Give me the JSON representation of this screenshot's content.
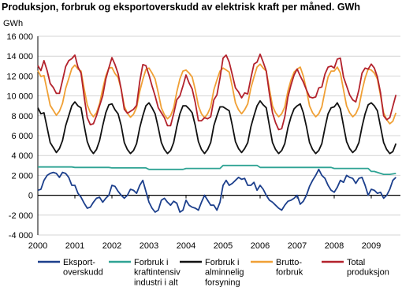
{
  "chart_data": {
    "type": "line",
    "title": "Produksjon, forbruk og eksportoverskudd av elektrisk kraft per måned. GWh",
    "y_label": "GWh",
    "categories": [
      "2000",
      null,
      null,
      null,
      null,
      null,
      null,
      null,
      null,
      null,
      null,
      null,
      "2001",
      null,
      null,
      null,
      null,
      null,
      null,
      null,
      null,
      null,
      null,
      null,
      "2002",
      null,
      null,
      null,
      null,
      null,
      null,
      null,
      null,
      null,
      null,
      null,
      "2003",
      null,
      null,
      null,
      null,
      null,
      null,
      null,
      null,
      null,
      null,
      null,
      "2004",
      null,
      null,
      null,
      null,
      null,
      null,
      null,
      null,
      null,
      null,
      null,
      "2005",
      null,
      null,
      null,
      null,
      null,
      null,
      null,
      null,
      null,
      null,
      null,
      "2006",
      null,
      null,
      null,
      null,
      null,
      null,
      null,
      null,
      null,
      null,
      null,
      "2007",
      null,
      null,
      null,
      null,
      null,
      null,
      null,
      null,
      null,
      null,
      null,
      "2008",
      null,
      null,
      null,
      null,
      null,
      null,
      null,
      null,
      null,
      null,
      null,
      "2009",
      null,
      null,
      null,
      null,
      null,
      null,
      null,
      null
    ],
    "ylim": [
      -4000,
      16000
    ],
    "yticks": [
      {
        "value": -4000,
        "label": "-4 000"
      },
      {
        "value": -2000,
        "label": "-2 000"
      },
      0,
      {
        "value": 2000,
        "label": "2 000"
      },
      {
        "value": 4000,
        "label": "4 000"
      },
      {
        "value": 6000,
        "label": "6 000"
      },
      {
        "value": 8000,
        "label": "8 000"
      },
      {
        "value": 10000,
        "label": "10 000"
      },
      {
        "value": 12000,
        "label": "12 000"
      },
      {
        "value": 14000,
        "label": "14 000"
      },
      {
        "value": 16000,
        "label": "16 000"
      }
    ],
    "grid": true,
    "series": [
      {
        "name": "Eksport-\noverskudd",
        "color": "#1c3f8c",
        "values": [
          500,
          600,
          1500,
          2000,
          2200,
          2300,
          2200,
          1800,
          2300,
          2200,
          1800,
          1000,
          1000,
          200,
          -200,
          -800,
          -1300,
          -1200,
          -700,
          -300,
          -200,
          -700,
          -300,
          0,
          1000,
          900,
          400,
          0,
          -300,
          0,
          600,
          500,
          200,
          1000,
          1500,
          400,
          -700,
          -1300,
          -1700,
          -1500,
          -500,
          -300,
          -700,
          -1000,
          -600,
          -800,
          -1700,
          -1500,
          -500,
          -1000,
          -1200,
          -1300,
          -1500,
          -700,
          0,
          -500,
          -1000,
          -1000,
          -1500,
          -700,
          1000,
          1500,
          1000,
          1200,
          1500,
          1800,
          1600,
          1700,
          1000,
          1000,
          1300,
          500,
          1000,
          600,
          0,
          -500,
          -700,
          -1000,
          -1300,
          -1500,
          -1000,
          -600,
          -500,
          -300,
          0,
          -900,
          -600,
          0,
          900,
          1500,
          2000,
          2600,
          2000,
          1700,
          1000,
          500,
          300,
          800,
          1500,
          1300,
          2000,
          1800,
          1700,
          1200,
          1700,
          1800,
          1000,
          0,
          600,
          500,
          200,
          300,
          -300,
          0,
          600,
          1500,
          1800
        ]
      },
      {
        "name": "Forbruk i\nkraftintensiv\nindustri i alt",
        "color": "#2fa394",
        "values": [
          2850,
          2850,
          2850,
          2850,
          2850,
          2850,
          2850,
          2850,
          2850,
          2850,
          2850,
          2850,
          2800,
          2800,
          2800,
          2800,
          2800,
          2800,
          2800,
          2800,
          2800,
          2800,
          2800,
          2800,
          2750,
          2750,
          2750,
          2750,
          2750,
          2750,
          2750,
          2750,
          2750,
          2750,
          2750,
          2750,
          2600,
          2600,
          2600,
          2600,
          2600,
          2600,
          2600,
          2600,
          2600,
          2600,
          2600,
          2600,
          2700,
          2700,
          2700,
          2700,
          2700,
          2700,
          2700,
          2700,
          2700,
          2700,
          2700,
          2700,
          3000,
          3000,
          3000,
          3000,
          3000,
          3000,
          3000,
          3000,
          3000,
          3000,
          3000,
          3000,
          2800,
          2800,
          2800,
          2800,
          2800,
          2800,
          2800,
          2800,
          2800,
          2800,
          2800,
          2800,
          2800,
          2800,
          2800,
          2800,
          2800,
          2800,
          2800,
          2800,
          2800,
          2800,
          2800,
          2800,
          2700,
          2700,
          2700,
          2700,
          2700,
          2700,
          2700,
          2700,
          2700,
          2700,
          2700,
          2700,
          2400,
          2400,
          2300,
          2200,
          2100,
          2100,
          2100,
          2150,
          2200
        ]
      },
      {
        "name": "Forbruk i\nalminnelig\nforsyning",
        "color": "#111111",
        "values": [
          8800,
          8200,
          8300,
          6800,
          5300,
          4800,
          4300,
          4700,
          5500,
          7000,
          8000,
          9000,
          9400,
          9000,
          8800,
          7000,
          5400,
          4600,
          4200,
          4600,
          5500,
          7000,
          8300,
          9100,
          9200,
          8600,
          8200,
          7000,
          5300,
          4600,
          4200,
          4500,
          5200,
          6800,
          8000,
          9000,
          9300,
          8800,
          8200,
          6800,
          5300,
          4600,
          4200,
          4500,
          5300,
          6900,
          8200,
          9000,
          9000,
          8700,
          8300,
          7000,
          5400,
          4600,
          4200,
          4600,
          5300,
          7000,
          8000,
          8900,
          8900,
          8700,
          8500,
          7000,
          5400,
          4700,
          4300,
          4700,
          5300,
          6900,
          8000,
          9000,
          9500,
          9100,
          8800,
          7000,
          5300,
          4600,
          4200,
          4500,
          5200,
          6800,
          7900,
          8700,
          9000,
          9200,
          8300,
          6900,
          5300,
          4600,
          4200,
          4500,
          5200,
          6800,
          8200,
          8800,
          8900,
          9300,
          8700,
          7000,
          5400,
          4700,
          4300,
          4600,
          5300,
          6900,
          8200,
          9100,
          9300,
          9000,
          8500,
          6900,
          5300,
          4600,
          4200,
          4400,
          5200
        ]
      },
      {
        "name": "Brutto-\nforbruk",
        "color": "#f0a035",
        "values": [
          12550,
          11950,
          12050,
          10550,
          9050,
          8550,
          8050,
          8450,
          9250,
          10750,
          11750,
          12750,
          13100,
          12700,
          12500,
          10700,
          9100,
          8300,
          7900,
          8300,
          9200,
          10700,
          12000,
          12800,
          12850,
          12250,
          11850,
          10650,
          8950,
          8250,
          7850,
          8150,
          8850,
          10450,
          11650,
          12650,
          12800,
          12300,
          11700,
          10300,
          8800,
          8100,
          7700,
          8000,
          8800,
          10400,
          11700,
          12500,
          12600,
          12300,
          11900,
          10600,
          9000,
          8200,
          7800,
          8200,
          8900,
          10600,
          11600,
          12500,
          12800,
          12600,
          12400,
          10900,
          9300,
          8600,
          8200,
          8600,
          9200,
          10800,
          11900,
          12900,
          13200,
          12800,
          12500,
          10700,
          9000,
          8300,
          7900,
          8200,
          8900,
          10500,
          11600,
          12400,
          12700,
          12900,
          12000,
          10600,
          9000,
          8300,
          7900,
          8200,
          8900,
          10500,
          11900,
          12500,
          12500,
          12900,
          12300,
          10600,
          9000,
          8300,
          7900,
          8200,
          8900,
          10500,
          11800,
          12700,
          12600,
          12300,
          11700,
          10000,
          8300,
          7600,
          7200,
          7450,
          8300
        ]
      },
      {
        "name": "Total\nproduksjon",
        "color": "#b3222c",
        "values": [
          13050,
          12550,
          13550,
          12550,
          11250,
          10850,
          10250,
          10250,
          11550,
          12950,
          13550,
          13750,
          14100,
          12900,
          12300,
          9900,
          7800,
          7100,
          7200,
          8000,
          9000,
          10000,
          11700,
          12800,
          13850,
          13150,
          12250,
          10650,
          8650,
          8250,
          8450,
          8650,
          9050,
          11450,
          13150,
          13050,
          12100,
          11000,
          10000,
          8800,
          8300,
          7800,
          7000,
          7000,
          8200,
          9600,
          10000,
          11000,
          12100,
          11300,
          10700,
          9300,
          7500,
          7500,
          7800,
          7700,
          7900,
          9600,
          10100,
          11800,
          13800,
          14100,
          13400,
          12100,
          10800,
          10400,
          9800,
          10300,
          10200,
          11800,
          13200,
          13400,
          14200,
          13400,
          12500,
          10200,
          8300,
          7300,
          6600,
          6700,
          7900,
          9900,
          11100,
          12100,
          12700,
          12000,
          11400,
          10600,
          9900,
          9800,
          9900,
          10800,
          10900,
          12200,
          12900,
          13000,
          12800,
          13700,
          13800,
          11900,
          11000,
          10100,
          9600,
          9400,
          10600,
          12300,
          12800,
          12700,
          13200,
          12800,
          11900,
          10300,
          8000,
          7600,
          7800,
          8950,
          10100
        ]
      }
    ]
  }
}
